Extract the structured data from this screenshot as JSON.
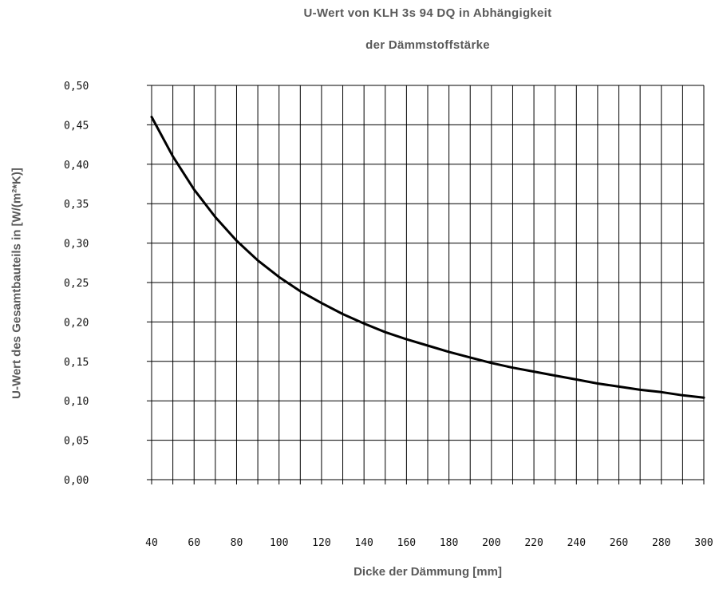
{
  "chart_data": {
    "type": "line",
    "title": "U-Wert von KLH 3s 94 DQ in Abhängigkeit",
    "subtitle": "der Dämmstoffstärke",
    "xlabel": "Dicke der Dämmung [mm]",
    "ylabel": "U-Wert des Gesamtbauteils  in [W/(m²*K)]",
    "xlim": [
      40,
      300
    ],
    "ylim": [
      0,
      0.5
    ],
    "grid": true,
    "x_ticks": [
      "40",
      "60",
      "80",
      "100",
      "120",
      "140",
      "160",
      "180",
      "200",
      "220",
      "240",
      "260",
      "280",
      "300"
    ],
    "y_ticks": [
      "0,00",
      "0,05",
      "0,10",
      "0,15",
      "0,20",
      "0,25",
      "0,30",
      "0,35",
      "0,40",
      "0,45",
      "0,50"
    ],
    "series": [
      {
        "x": [
          40,
          50,
          60,
          70,
          80,
          90,
          100,
          110,
          120,
          130,
          140,
          150,
          160,
          170,
          180,
          190,
          200,
          210,
          220,
          230,
          240,
          250,
          260,
          270,
          280,
          290,
          300
        ],
        "y": [
          0.46,
          0.41,
          0.368,
          0.333,
          0.303,
          0.278,
          0.257,
          0.239,
          0.224,
          0.21,
          0.198,
          0.187,
          0.178,
          0.17,
          0.162,
          0.155,
          0.148,
          0.142,
          0.137,
          0.132,
          0.127,
          0.122,
          0.118,
          0.114,
          0.111,
          0.107,
          0.104
        ]
      }
    ],
    "colors": {
      "line": "#000000",
      "grid": "#000000",
      "labels": "#5a5a5a"
    }
  }
}
